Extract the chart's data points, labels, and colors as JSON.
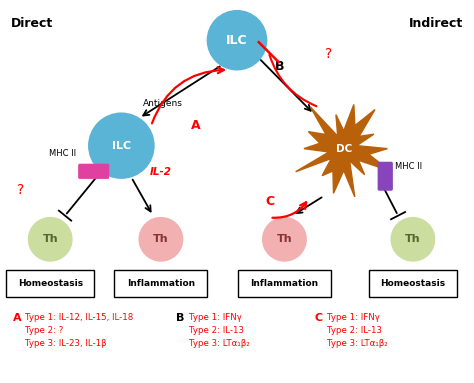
{
  "title_left": "Direct",
  "title_right": "Indirect",
  "bg_color": "#ffffff",
  "ilc_top_color": "#5ab4d6",
  "ilc_left_color": "#5ab4d6",
  "dc_color": "#b8610a",
  "th_pink_color": "#f2b0b0",
  "th_green_color": "#ccdda0",
  "mhcii_left_color": "#e040a0",
  "mhcii_right_color": "#8844bb",
  "legend_A": [
    "A",
    "Type 1: IL-12, IL-15, IL-18",
    "Type 2: ?",
    "Type 3: IL-23, IL-1β"
  ],
  "legend_B": [
    "B",
    "Type 1: IFNγ",
    "Type 2: IL-13",
    "Type 3: LTα₁β₂"
  ],
  "legend_C": [
    "C",
    "Type 1: IFNγ",
    "Type 2: IL-13",
    "Type 3: LTα₁β₂"
  ],
  "label_homeostasis": "Homeostasis",
  "label_inflammation": "Inflammation",
  "label_antigens": "Antigens",
  "label_il2": "IL-2",
  "label_mhcii": "MHC II",
  "label_ilc": "ILC",
  "label_dc": "DC",
  "label_th": "Th",
  "question_mark": "?"
}
